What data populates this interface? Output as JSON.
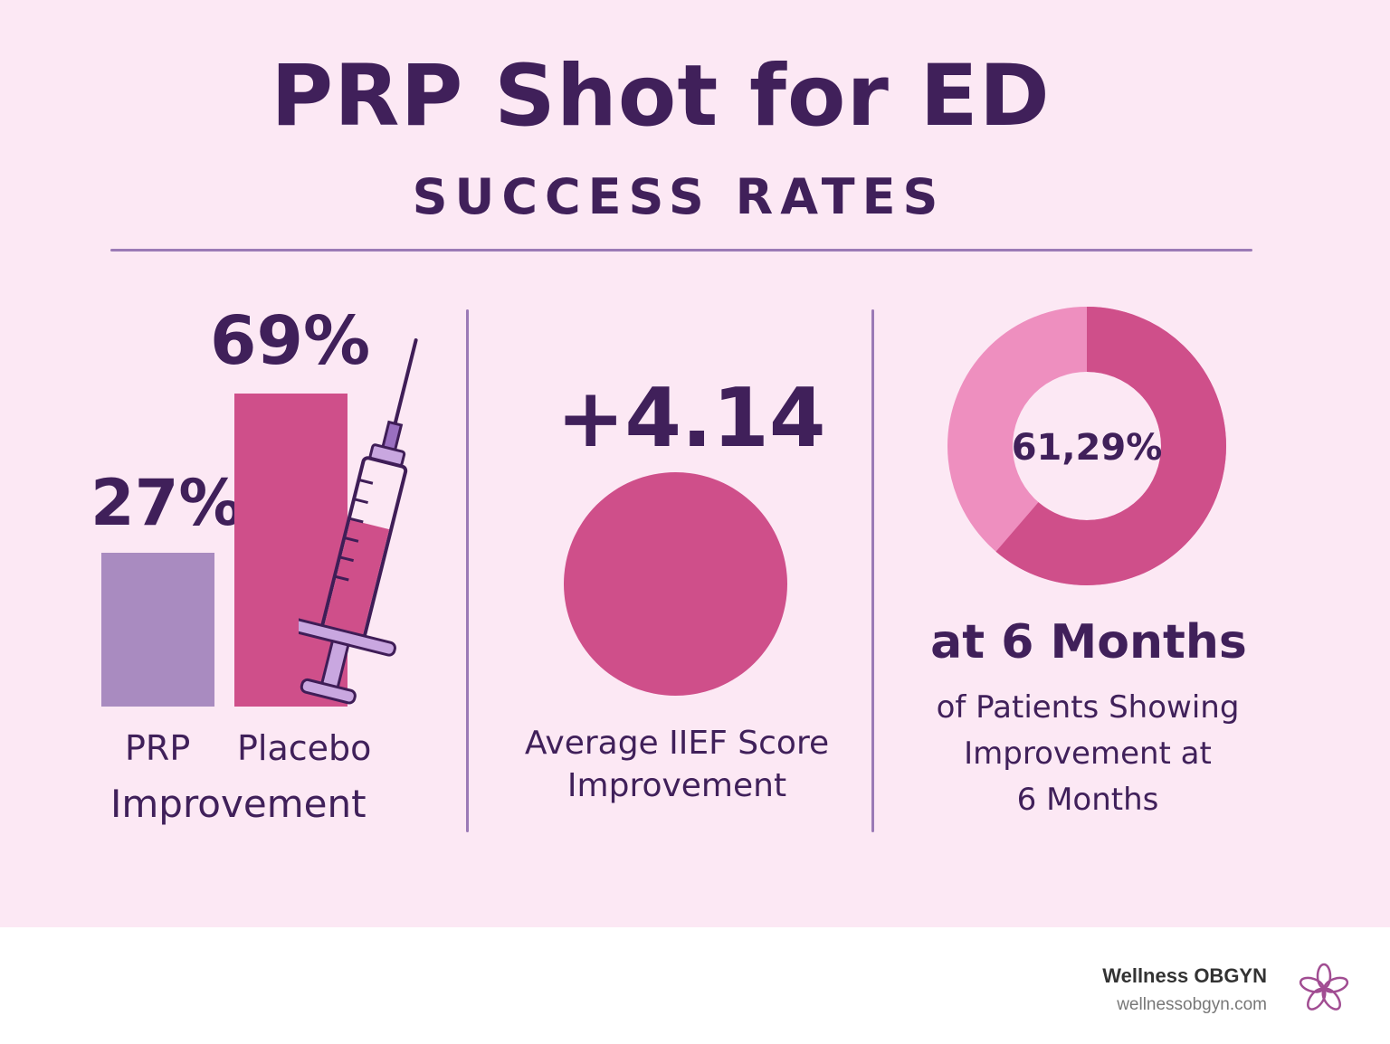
{
  "header": {
    "title": "PRP Shot for ED",
    "subtitle": "SUCCESS RATES"
  },
  "panel_left": {
    "prp_value": "27%",
    "placebo_value": "69%",
    "prp_label": "PRP",
    "placebo_label": "Placebo",
    "caption": "Improvement",
    "colors": {
      "prp_bar": "#a98bc0",
      "placebo_bar": "#cf4f8a"
    }
  },
  "panel_middle": {
    "value": "+4.14",
    "caption_line1": "Average IIEF Score",
    "caption_line2": "Improvement",
    "circle_color": "#cf4f8a"
  },
  "panel_right": {
    "donut_value": "61,29%",
    "headline": "at 6 Months",
    "caption_line1": "of Patients Showing",
    "caption_line2": "Improvement at",
    "caption_line3": "6 Months",
    "colors": {
      "major": "#cf4f8a",
      "minor": "#ee8fbf"
    }
  },
  "footer": {
    "brand": "Wellness OBGYN",
    "url": "wellnessobgyn.com",
    "logo_icon": "flower-icon"
  }
}
